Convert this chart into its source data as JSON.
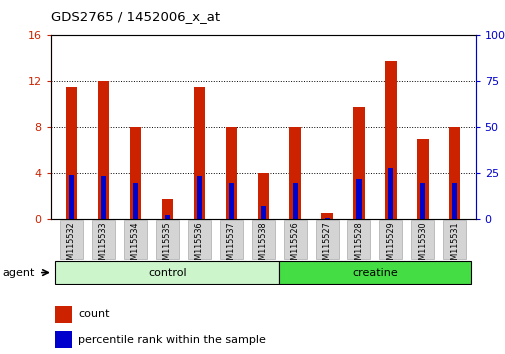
{
  "title": "GDS2765 / 1452006_x_at",
  "samples": [
    "GSM115532",
    "GSM115533",
    "GSM115534",
    "GSM115535",
    "GSM115536",
    "GSM115537",
    "GSM115538",
    "GSM115526",
    "GSM115527",
    "GSM115528",
    "GSM115529",
    "GSM115530",
    "GSM115531"
  ],
  "count_values": [
    11.5,
    12.0,
    8.0,
    1.8,
    11.5,
    8.0,
    4.0,
    8.0,
    0.6,
    9.8,
    13.8,
    7.0,
    8.0
  ],
  "percentile_values": [
    24.0,
    23.5,
    20.0,
    2.5,
    23.5,
    20.0,
    7.5,
    20.0,
    0.6,
    22.0,
    28.0,
    20.0,
    20.0
  ],
  "groups": [
    {
      "label": "control",
      "start": 0,
      "end": 6,
      "color": "#ccf5cc"
    },
    {
      "label": "creatine",
      "start": 7,
      "end": 12,
      "color": "#44dd44"
    }
  ],
  "agent_label": "agent",
  "ylim_left": [
    0,
    16
  ],
  "ylim_right": [
    0,
    100
  ],
  "yticks_left": [
    0,
    4,
    8,
    12,
    16
  ],
  "yticks_right": [
    0,
    25,
    50,
    75,
    100
  ],
  "bar_color": "#cc2200",
  "percentile_color": "#0000cc",
  "bar_width": 0.35,
  "left_axis_color": "#cc2200",
  "right_axis_color": "#0000cc",
  "tick_bg_color": "#d4d4d4",
  "border_color": "#888888"
}
